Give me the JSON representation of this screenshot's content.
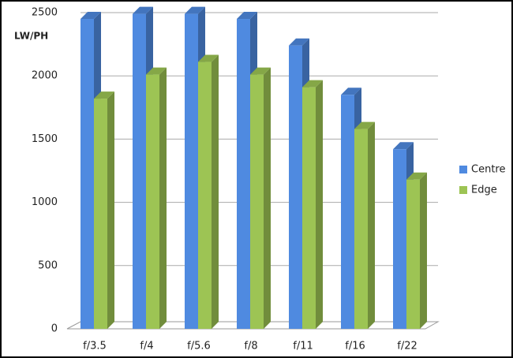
{
  "chart_data": {
    "type": "bar3d",
    "y_label": "LW/PH",
    "categories": [
      "f/3.5",
      "f/4",
      "f/5.6",
      "f/8",
      "f/11",
      "f/16",
      "f/22"
    ],
    "series": [
      {
        "name": "Centre",
        "color": "#4f8ae0",
        "values": [
          2450,
          2490,
          2490,
          2450,
          2240,
          1850,
          1420
        ]
      },
      {
        "name": "Edge",
        "color": "#9dc454",
        "values": [
          1820,
          2010,
          2110,
          2010,
          1910,
          1580,
          1180
        ]
      }
    ],
    "ylim": [
      0,
      2500
    ],
    "yticks": [
      0,
      500,
      1000,
      1500,
      2000,
      2500
    ],
    "grid": true,
    "legend": "right"
  }
}
